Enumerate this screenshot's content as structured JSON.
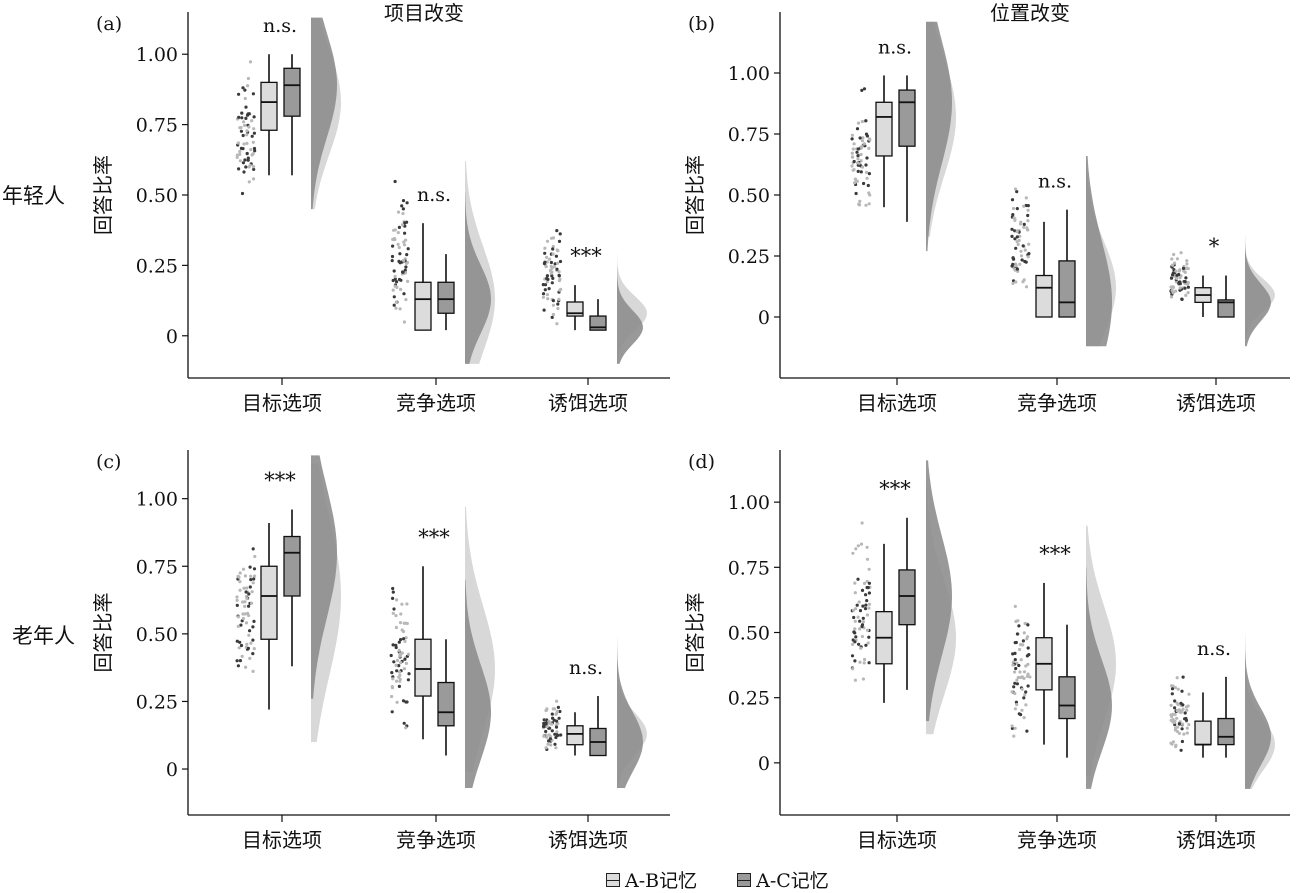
{
  "rows": [
    "年轻人",
    "老年人"
  ],
  "legend": [
    {
      "name": "A-B记忆",
      "color": "#dcdcdc"
    },
    {
      "name": "A-C记忆",
      "color": "#9a9a9a"
    }
  ],
  "colors": {
    "ab_fill": "#dcdcdc",
    "ac_fill": "#9a9a9a",
    "ab_density": "#d6d6d6",
    "ac_density": "#8e8e8e",
    "ab_point": "#b8b8b8",
    "ac_point": "#3a3a3a"
  },
  "chart_data": [
    {
      "type": "raincloud",
      "panel_label": "(a)",
      "title": "项目改变",
      "ylabel": "回答比率",
      "categories": [
        "目标选项",
        "竞争选项",
        "诱饵选项"
      ],
      "yticks": [
        "0",
        "0.25",
        "0.50",
        "0.75",
        "1.00"
      ],
      "ylim": [
        -0.15,
        1.15
      ],
      "significance": [
        "n.s.",
        "n.s.",
        "***"
      ],
      "series": [
        {
          "name": "A-B记忆",
          "box": [
            {
              "min": 0.57,
              "q1": 0.73,
              "median": 0.83,
              "q3": 0.9,
              "max": 1.0
            },
            {
              "min": 0.02,
              "q1": 0.02,
              "median": 0.13,
              "q3": 0.19,
              "max": 0.4
            },
            {
              "min": 0.02,
              "q1": 0.07,
              "median": 0.08,
              "q3": 0.12,
              "max": 0.18
            }
          ]
        },
        {
          "name": "A-C记忆",
          "box": [
            {
              "min": 0.57,
              "q1": 0.78,
              "median": 0.89,
              "q3": 0.95,
              "max": 1.0
            },
            {
              "min": 0.02,
              "q1": 0.08,
              "median": 0.13,
              "q3": 0.19,
              "max": 0.29
            },
            {
              "min": 0.02,
              "q1": 0.02,
              "median": 0.03,
              "q3": 0.07,
              "max": 0.13
            }
          ]
        }
      ],
      "points_range": [
        [
          0.44,
          1.02
        ],
        [
          0.0,
          0.61
        ],
        [
          0.0,
          0.44
        ]
      ]
    },
    {
      "type": "raincloud",
      "panel_label": "(b)",
      "title": "位置改变",
      "ylabel": "回答比率",
      "categories": [
        "目标选项",
        "竞争选项",
        "诱饵选项"
      ],
      "yticks": [
        "0",
        "0.25",
        "0.50",
        "0.75",
        "1.00"
      ],
      "ylim": [
        -0.25,
        1.25
      ],
      "significance": [
        "n.s.",
        "n.s.",
        "*"
      ],
      "series": [
        {
          "name": "A-B记忆",
          "box": [
            {
              "min": 0.45,
              "q1": 0.66,
              "median": 0.82,
              "q3": 0.88,
              "max": 0.99
            },
            {
              "min": 0.0,
              "q1": 0.0,
              "median": 0.12,
              "q3": 0.17,
              "max": 0.39
            },
            {
              "min": 0.0,
              "q1": 0.06,
              "median": 0.09,
              "q3": 0.12,
              "max": 0.17
            }
          ]
        },
        {
          "name": "A-C记忆",
          "box": [
            {
              "min": 0.39,
              "q1": 0.7,
              "median": 0.88,
              "q3": 0.93,
              "max": 0.99
            },
            {
              "min": 0.0,
              "q1": 0.0,
              "median": 0.06,
              "q3": 0.23,
              "max": 0.44
            },
            {
              "min": 0.0,
              "q1": 0.0,
              "median": 0.06,
              "q3": 0.07,
              "max": 0.17
            }
          ]
        }
      ],
      "points_range": [
        [
          0.37,
          1.01
        ],
        [
          0.0,
          0.61
        ],
        [
          0.0,
          0.3
        ]
      ]
    },
    {
      "type": "raincloud",
      "panel_label": "(c)",
      "ylabel": "回答比率",
      "categories": [
        "目标选项",
        "竞争选项",
        "诱饵选项"
      ],
      "yticks": [
        "0",
        "0.25",
        "0.50",
        "0.75",
        "1.00"
      ],
      "ylim": [
        -0.17,
        1.18
      ],
      "significance": [
        "***",
        "***",
        "n.s."
      ],
      "series": [
        {
          "name": "A-B记忆",
          "box": [
            {
              "min": 0.22,
              "q1": 0.48,
              "median": 0.64,
              "q3": 0.75,
              "max": 0.91
            },
            {
              "min": 0.11,
              "q1": 0.27,
              "median": 0.37,
              "q3": 0.48,
              "max": 0.75
            },
            {
              "min": 0.05,
              "q1": 0.09,
              "median": 0.13,
              "q3": 0.16,
              "max": 0.21
            }
          ]
        },
        {
          "name": "A-C记忆",
          "box": [
            {
              "min": 0.38,
              "q1": 0.64,
              "median": 0.8,
              "q3": 0.86,
              "max": 0.96
            },
            {
              "min": 0.05,
              "q1": 0.16,
              "median": 0.21,
              "q3": 0.32,
              "max": 0.48
            },
            {
              "min": 0.05,
              "q1": 0.05,
              "median": 0.1,
              "q3": 0.15,
              "max": 0.27
            }
          ]
        }
      ],
      "points_range": [
        [
          0.22,
          0.95
        ],
        [
          0.04,
          0.79
        ],
        [
          0.03,
          0.28
        ]
      ]
    },
    {
      "type": "raincloud",
      "panel_label": "(d)",
      "ylabel": "回答比率",
      "categories": [
        "目标选项",
        "竞争选项",
        "诱饵选项"
      ],
      "yticks": [
        "0",
        "0.25",
        "0.50",
        "0.75",
        "1.00"
      ],
      "ylim": [
        -0.2,
        1.2
      ],
      "significance": [
        "***",
        "***",
        "n.s."
      ],
      "series": [
        {
          "name": "A-B记忆",
          "box": [
            {
              "min": 0.23,
              "q1": 0.38,
              "median": 0.48,
              "q3": 0.58,
              "max": 0.84
            },
            {
              "min": 0.07,
              "q1": 0.28,
              "median": 0.38,
              "q3": 0.48,
              "max": 0.69
            },
            {
              "min": 0.02,
              "q1": 0.07,
              "median": 0.07,
              "q3": 0.16,
              "max": 0.27
            }
          ]
        },
        {
          "name": "A-C记忆",
          "box": [
            {
              "min": 0.28,
              "q1": 0.53,
              "median": 0.64,
              "q3": 0.74,
              "max": 0.94
            },
            {
              "min": 0.02,
              "q1": 0.17,
              "median": 0.22,
              "q3": 0.33,
              "max": 0.53
            },
            {
              "min": 0.02,
              "q1": 0.07,
              "median": 0.1,
              "q3": 0.17,
              "max": 0.33
            }
          ]
        }
      ],
      "points_range": [
        [
          0.17,
          0.94
        ],
        [
          0.01,
          0.7
        ],
        [
          0.0,
          0.38
        ]
      ]
    }
  ]
}
